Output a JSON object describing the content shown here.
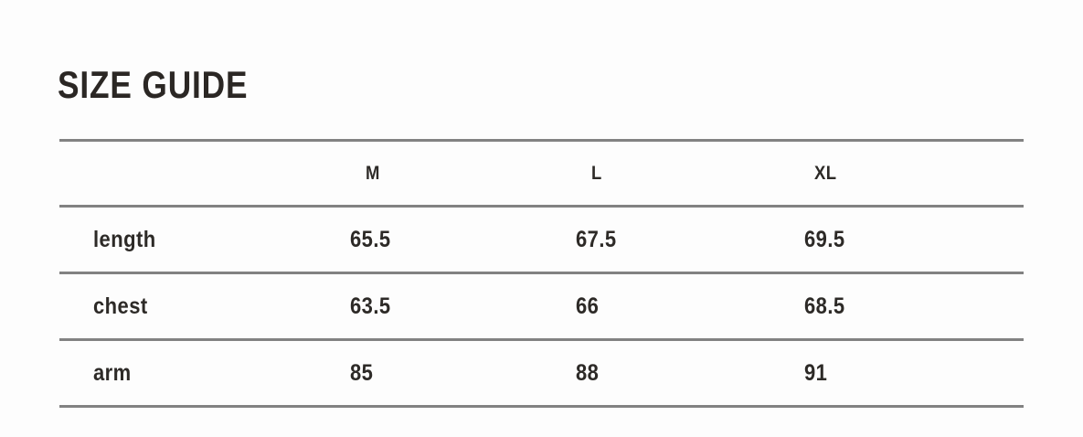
{
  "title": "SIZE GUIDE",
  "table": {
    "columns": [
      "M",
      "L",
      "XL"
    ],
    "rows": [
      {
        "label": "length",
        "values": [
          "65.5",
          "67.5",
          "69.5"
        ]
      },
      {
        "label": "chest",
        "values": [
          "63.5",
          "66",
          "68.5"
        ]
      },
      {
        "label": "arm",
        "values": [
          "85",
          "88",
          "91"
        ]
      }
    ]
  },
  "colors": {
    "background": "#fdfdfd",
    "text": "#2d2a27",
    "rule": "#828282"
  }
}
